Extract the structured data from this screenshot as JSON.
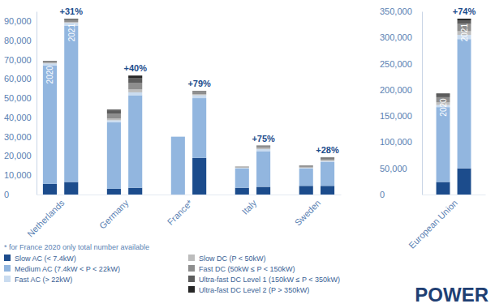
{
  "chart_data": [
    {
      "type": "bar",
      "stacked": true,
      "categories": [
        "Netherlands",
        "Germany",
        "France*",
        "Italy",
        "Sweden"
      ],
      "ylim": [
        0,
        95000
      ],
      "yticks": [
        0,
        {
          "value": 10000,
          "label": "10,000"
        },
        {
          "value": 20000,
          "label": "20,000"
        },
        {
          "value": 30000,
          "label": "30,000"
        },
        {
          "value": 40000,
          "label": "40,000"
        },
        {
          "value": 50000,
          "label": "50,000"
        },
        {
          "value": 60000,
          "label": "60,000"
        },
        {
          "value": 70000,
          "label": "70,000"
        },
        {
          "value": 80000,
          "label": "80,000"
        },
        {
          "value": 90000,
          "label": "90,000"
        }
      ],
      "grid": false,
      "series": [
        {
          "name": "Slow AC (< 7.4kW)",
          "color": "#1c4c8c",
          "values": [
            [
              5500,
              6500
            ],
            [
              3000,
              3500
            ],
            [
              null,
              19000
            ],
            [
              3500,
              4000
            ],
            [
              4500,
              4500
            ]
          ]
        },
        {
          "name": "Medium AC (7.4kW < P < 22kW)",
          "color": "#92b6df",
          "values": [
            [
              61500,
              81000
            ],
            [
              34500,
              48000
            ],
            [
              null,
              31000
            ],
            [
              10000,
              18500
            ],
            [
              9000,
              12500
            ]
          ]
        },
        {
          "name": "Fast AC (> 22kW)",
          "color": "#cadcf0",
          "values": [
            [
              1000,
              1500
            ],
            [
              1000,
              1500
            ],
            [
              null,
              1500
            ],
            [
              300,
              1000
            ],
            [
              300,
              400
            ]
          ]
        },
        {
          "name": "Slow DC (P < 50kW)",
          "color": "#bdbdbd",
          "values": [
            [
              300,
              500
            ],
            [
              1000,
              1500
            ],
            [
              null,
              500
            ],
            [
              300,
              700
            ],
            [
              300,
              400
            ]
          ]
        },
        {
          "name": "Fast DC (50kW ≤ P < 150kW)",
          "color": "#8e8e8e",
          "values": [
            [
              700,
              1000
            ],
            [
              2500,
              3500
            ],
            [
              null,
              1200
            ],
            [
              300,
              800
            ],
            [
              500,
              800
            ]
          ]
        },
        {
          "name": "Ultra-fast DC Level 1 (150kW ≤ P < 350kW)",
          "color": "#5c5c5c",
          "values": [
            [
              300,
              500
            ],
            [
              1500,
              2500
            ],
            [
              null,
              400
            ],
            [
              100,
              300
            ],
            [
              300,
              400
            ]
          ]
        },
        {
          "name": "Ultra-fast DC Level 2 (P > 350kW)",
          "color": "#262626",
          "values": [
            [
              0,
              200
            ],
            [
              500,
              1200
            ],
            [
              null,
              100
            ],
            [
              0,
              100
            ],
            [
              100,
              200
            ]
          ]
        }
      ],
      "totals": [
        [
          null,
          null
        ],
        [
          null,
          null
        ],
        [
          30000,
          null
        ],
        [
          null,
          null
        ],
        [
          null,
          null
        ]
      ],
      "growth_labels": [
        "+31%",
        "+40%",
        "+79%",
        "+75%",
        "+28%"
      ],
      "bar_labels": [
        [
          "2020",
          "2021"
        ],
        null,
        null,
        null,
        null
      ]
    },
    {
      "type": "bar",
      "stacked": true,
      "categories": [
        "European Union"
      ],
      "ylim": [
        0,
        350000
      ],
      "yticks": [
        0,
        {
          "value": 50000,
          "label": "50,000"
        },
        {
          "value": 100000,
          "label": "100,000"
        },
        {
          "value": 150000,
          "label": "150,000"
        },
        {
          "value": 200000,
          "label": "200,000"
        },
        {
          "value": 250000,
          "label": "250,000"
        },
        {
          "value": 300000,
          "label": "300,000"
        },
        {
          "value": 350000,
          "label": "350,000"
        }
      ],
      "grid": false,
      "series": [
        {
          "color": "#1c4c8c",
          "values": [
            [
              24000,
              50000
            ]
          ]
        },
        {
          "color": "#92b6df",
          "values": [
            [
              143000,
              247000
            ]
          ]
        },
        {
          "color": "#cadcf0",
          "values": [
            [
              4000,
              8000
            ]
          ]
        },
        {
          "color": "#bdbdbd",
          "values": [
            [
              5000,
              7000
            ]
          ]
        },
        {
          "color": "#8e8e8e",
          "values": [
            [
              10000,
              14000
            ]
          ]
        },
        {
          "color": "#5c5c5c",
          "values": [
            [
              5000,
              7000
            ]
          ]
        },
        {
          "color": "#262626",
          "values": [
            [
              2000,
              3000
            ]
          ]
        }
      ],
      "growth_labels": [
        "+74%"
      ],
      "bar_labels": [
        [
          "2020",
          "2021"
        ]
      ]
    }
  ],
  "footnote": "* for France 2020 only total number available",
  "logo": "POWER"
}
